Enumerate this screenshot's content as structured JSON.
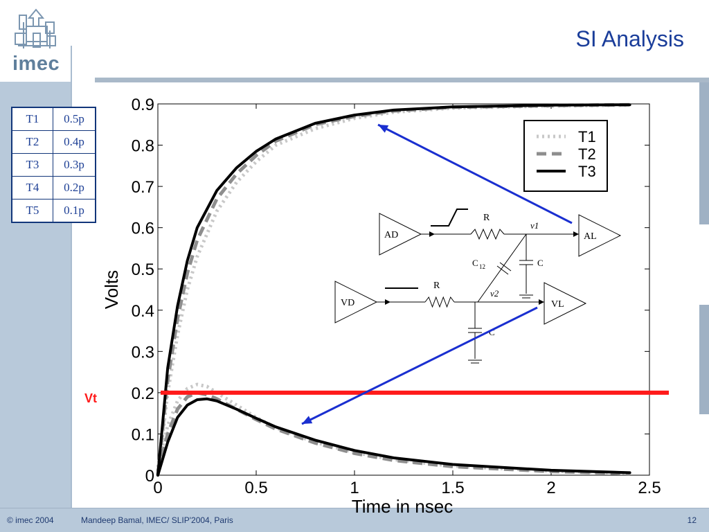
{
  "slide": {
    "title": "SI Analysis",
    "logo_text": "imec",
    "footer_left": "© imec 2004",
    "footer_center": "Mandeep Bamal, IMEC/ SLIP'2004, Paris",
    "page_number": "12",
    "colors": {
      "title": "#1a3d9a",
      "band": "#b8c9da",
      "threshold": "#ff1a1a",
      "arrow": "#1a2fd0"
    }
  },
  "rise_times": [
    {
      "name": "T1",
      "value": "0.5p"
    },
    {
      "name": "T2",
      "value": "0.4p"
    },
    {
      "name": "T3",
      "value": "0.3p"
    },
    {
      "name": "T4",
      "value": "0.2p"
    },
    {
      "name": "T5",
      "value": "0.1p"
    }
  ],
  "chart_data": {
    "type": "line",
    "title": "",
    "xlabel": "Time in nsec",
    "ylabel": "Volts",
    "xlim": [
      0,
      2.5
    ],
    "ylim": [
      0,
      0.9
    ],
    "x_ticks": [
      "0",
      "0.5",
      "1",
      "1.5",
      "2",
      "2.5"
    ],
    "y_ticks": [
      "0",
      "0.1",
      "0.2",
      "0.3",
      "0.4",
      "0.5",
      "0.6",
      "0.7",
      "0.8",
      "0.9"
    ],
    "grid": false,
    "legend_position": "top-right",
    "threshold": {
      "label": "Vt",
      "value": 0.2
    },
    "series": [
      {
        "name": "T1",
        "style": "dotted",
        "color": "#c8c8c8",
        "aggressor": [
          [
            0,
            0
          ],
          [
            0.05,
            0.2
          ],
          [
            0.1,
            0.34
          ],
          [
            0.15,
            0.45
          ],
          [
            0.2,
            0.53
          ],
          [
            0.3,
            0.64
          ],
          [
            0.4,
            0.71
          ],
          [
            0.5,
            0.76
          ],
          [
            0.6,
            0.8
          ],
          [
            0.8,
            0.84
          ],
          [
            1.0,
            0.865
          ],
          [
            1.2,
            0.88
          ],
          [
            1.5,
            0.89
          ],
          [
            2.0,
            0.895
          ],
          [
            2.4,
            0.897
          ]
        ],
        "victim": [
          [
            0,
            0.02
          ],
          [
            0.05,
            0.12
          ],
          [
            0.1,
            0.18
          ],
          [
            0.15,
            0.21
          ],
          [
            0.2,
            0.22
          ],
          [
            0.25,
            0.215
          ],
          [
            0.3,
            0.2
          ],
          [
            0.4,
            0.17
          ],
          [
            0.5,
            0.14
          ],
          [
            0.6,
            0.115
          ],
          [
            0.8,
            0.08
          ],
          [
            1.0,
            0.055
          ],
          [
            1.2,
            0.038
          ],
          [
            1.5,
            0.022
          ],
          [
            2.0,
            0.01
          ],
          [
            2.4,
            0.005
          ]
        ]
      },
      {
        "name": "T2",
        "style": "dashed",
        "color": "#8e8e8e",
        "aggressor": [
          [
            0,
            0
          ],
          [
            0.05,
            0.23
          ],
          [
            0.1,
            0.38
          ],
          [
            0.15,
            0.49
          ],
          [
            0.2,
            0.57
          ],
          [
            0.3,
            0.67
          ],
          [
            0.4,
            0.73
          ],
          [
            0.5,
            0.775
          ],
          [
            0.6,
            0.81
          ],
          [
            0.8,
            0.85
          ],
          [
            1.0,
            0.87
          ],
          [
            1.2,
            0.883
          ],
          [
            1.5,
            0.892
          ],
          [
            2.0,
            0.896
          ],
          [
            2.4,
            0.898
          ]
        ],
        "victim": [
          [
            0,
            0.01
          ],
          [
            0.05,
            0.1
          ],
          [
            0.1,
            0.16
          ],
          [
            0.15,
            0.19
          ],
          [
            0.2,
            0.2
          ],
          [
            0.25,
            0.195
          ],
          [
            0.3,
            0.185
          ],
          [
            0.4,
            0.16
          ],
          [
            0.5,
            0.135
          ],
          [
            0.6,
            0.112
          ],
          [
            0.8,
            0.078
          ],
          [
            1.0,
            0.053
          ],
          [
            1.2,
            0.036
          ],
          [
            1.5,
            0.021
          ],
          [
            2.0,
            0.009
          ],
          [
            2.4,
            0.004
          ]
        ]
      },
      {
        "name": "T3",
        "style": "solid",
        "color": "#000000",
        "aggressor": [
          [
            0,
            0
          ],
          [
            0.05,
            0.26
          ],
          [
            0.1,
            0.41
          ],
          [
            0.15,
            0.52
          ],
          [
            0.2,
            0.6
          ],
          [
            0.3,
            0.69
          ],
          [
            0.4,
            0.745
          ],
          [
            0.5,
            0.785
          ],
          [
            0.6,
            0.815
          ],
          [
            0.8,
            0.853
          ],
          [
            1.0,
            0.873
          ],
          [
            1.2,
            0.885
          ],
          [
            1.5,
            0.893
          ],
          [
            2.0,
            0.897
          ],
          [
            2.4,
            0.898
          ]
        ],
        "victim": [
          [
            0,
            0.0
          ],
          [
            0.05,
            0.08
          ],
          [
            0.1,
            0.14
          ],
          [
            0.15,
            0.17
          ],
          [
            0.2,
            0.183
          ],
          [
            0.25,
            0.185
          ],
          [
            0.3,
            0.18
          ],
          [
            0.4,
            0.16
          ],
          [
            0.5,
            0.138
          ],
          [
            0.6,
            0.117
          ],
          [
            0.8,
            0.085
          ],
          [
            1.0,
            0.06
          ],
          [
            1.2,
            0.042
          ],
          [
            1.5,
            0.026
          ],
          [
            2.0,
            0.012
          ],
          [
            2.4,
            0.006
          ]
        ]
      }
    ]
  },
  "circuit": {
    "aggressor_driver": "AD",
    "aggressor_load": "AL",
    "victim_driver": "VD",
    "victim_load": "VL",
    "resistor": "R",
    "capacitor": "C",
    "coupling_cap": "C",
    "coupling_cap_sub": "12",
    "node1": "v1",
    "node2": "v2"
  }
}
